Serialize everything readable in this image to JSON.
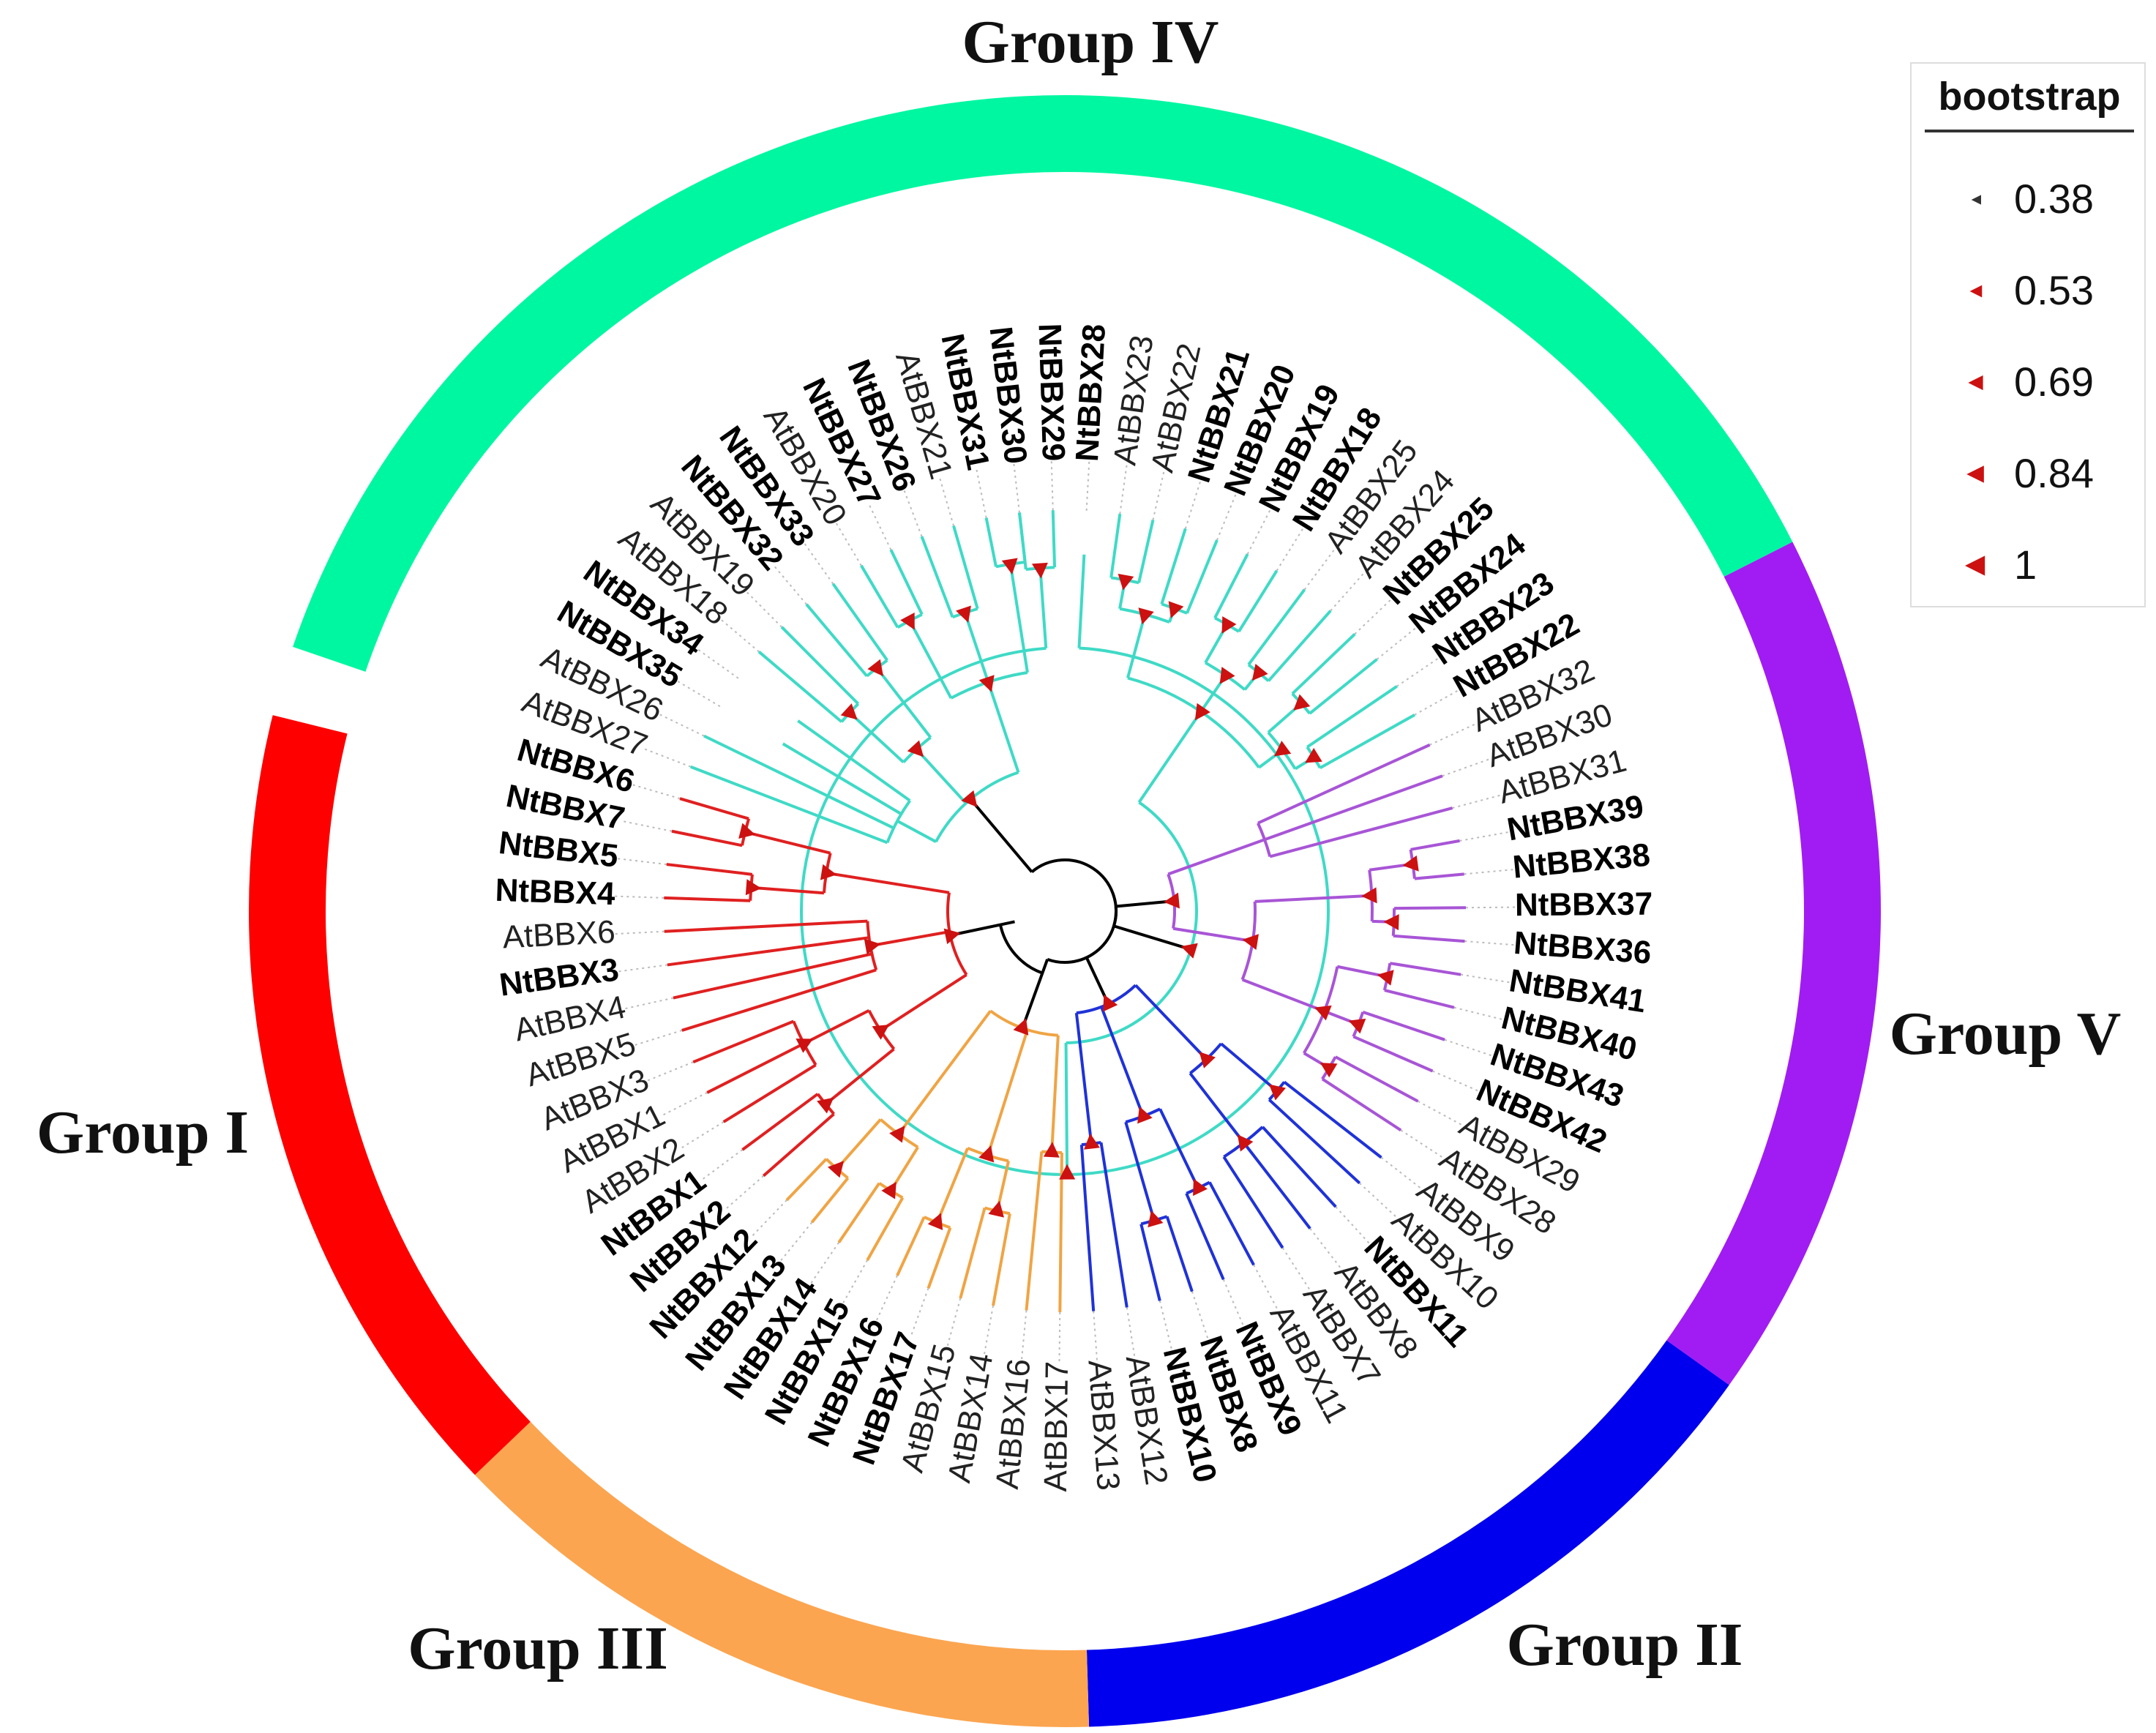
{
  "figure": {
    "groups": [
      {
        "name": "Group IV",
        "color": "#00f7a1",
        "branch_color": "#3fdac6"
      },
      {
        "name": "Group V",
        "color": "#a11cf2",
        "branch_color": "#a855d6"
      },
      {
        "name": "Group II",
        "color": "#0000ee",
        "branch_color": "#1f32d8"
      },
      {
        "name": "Group III",
        "color": "#fba550",
        "branch_color": "#f0a444"
      },
      {
        "name": "Group I",
        "color": "#ff0000",
        "branch_color": "#e02020"
      }
    ],
    "leaves_clockwise_from_top": [
      {
        "label": "NtBBX30",
        "group": "Group IV",
        "species": "Nt"
      },
      {
        "label": "NtBBX29",
        "group": "Group IV",
        "species": "Nt"
      },
      {
        "label": "NtBBX28",
        "group": "Group IV",
        "species": "Nt"
      },
      {
        "label": "AtBBX23",
        "group": "Group IV",
        "species": "At"
      },
      {
        "label": "AtBBX22",
        "group": "Group IV",
        "species": "At"
      },
      {
        "label": "NtBBX21",
        "group": "Group IV",
        "species": "Nt"
      },
      {
        "label": "NtBBX20",
        "group": "Group IV",
        "species": "Nt"
      },
      {
        "label": "NtBBX19",
        "group": "Group IV",
        "species": "Nt"
      },
      {
        "label": "NtBBX18",
        "group": "Group IV",
        "species": "Nt"
      },
      {
        "label": "AtBBX25",
        "group": "Group IV",
        "species": "At"
      },
      {
        "label": "AtBBX24",
        "group": "Group IV",
        "species": "At"
      },
      {
        "label": "NtBBX25",
        "group": "Group IV",
        "species": "Nt"
      },
      {
        "label": "NtBBX24",
        "group": "Group IV",
        "species": "Nt"
      },
      {
        "label": "NtBBX23",
        "group": "Group IV",
        "species": "Nt"
      },
      {
        "label": "NtBBX22",
        "group": "Group IV",
        "species": "Nt"
      },
      {
        "label": "AtBBX32",
        "group": "Group V",
        "species": "At"
      },
      {
        "label": "AtBBX30",
        "group": "Group V",
        "species": "At"
      },
      {
        "label": "AtBBX31",
        "group": "Group V",
        "species": "At"
      },
      {
        "label": "NtBBX39",
        "group": "Group V",
        "species": "Nt"
      },
      {
        "label": "NtBBX38",
        "group": "Group V",
        "species": "Nt"
      },
      {
        "label": "NtBBX37",
        "group": "Group V",
        "species": "Nt"
      },
      {
        "label": "NtBBX36",
        "group": "Group V",
        "species": "Nt"
      },
      {
        "label": "NtBBX41",
        "group": "Group V",
        "species": "Nt"
      },
      {
        "label": "NtBBX40",
        "group": "Group V",
        "species": "Nt"
      },
      {
        "label": "NtBBX43",
        "group": "Group V",
        "species": "Nt"
      },
      {
        "label": "NtBBX42",
        "group": "Group V",
        "species": "Nt"
      },
      {
        "label": "AtBBX29",
        "group": "Group V",
        "species": "At"
      },
      {
        "label": "AtBBX28",
        "group": "Group V",
        "species": "At"
      },
      {
        "label": "AtBBX9",
        "group": "Group II",
        "species": "At"
      },
      {
        "label": "AtBBX10",
        "group": "Group II",
        "species": "At"
      },
      {
        "label": "NtBBX11",
        "group": "Group II",
        "species": "Nt"
      },
      {
        "label": "AtBBX8",
        "group": "Group II",
        "species": "At"
      },
      {
        "label": "AtBBX7",
        "group": "Group II",
        "species": "At"
      },
      {
        "label": "AtBBX11",
        "group": "Group II",
        "species": "At"
      },
      {
        "label": "NtBBX9",
        "group": "Group II",
        "species": "Nt"
      },
      {
        "label": "NtBBX8",
        "group": "Group II",
        "species": "Nt"
      },
      {
        "label": "NtBBX10",
        "group": "Group II",
        "species": "Nt"
      },
      {
        "label": "AtBBX12",
        "group": "Group II",
        "species": "At"
      },
      {
        "label": "AtBBX13",
        "group": "Group II",
        "species": "At"
      },
      {
        "label": "AtBBX17",
        "group": "Group III",
        "species": "At"
      },
      {
        "label": "AtBBX16",
        "group": "Group III",
        "species": "At"
      },
      {
        "label": "AtBBX14",
        "group": "Group III",
        "species": "At"
      },
      {
        "label": "AtBBX15",
        "group": "Group III",
        "species": "At"
      },
      {
        "label": "NtBBX17",
        "group": "Group III",
        "species": "Nt"
      },
      {
        "label": "NtBBX16",
        "group": "Group III",
        "species": "Nt"
      },
      {
        "label": "NtBBX15",
        "group": "Group III",
        "species": "Nt"
      },
      {
        "label": "NtBBX14",
        "group": "Group III",
        "species": "Nt"
      },
      {
        "label": "NtBBX13",
        "group": "Group III",
        "species": "Nt"
      },
      {
        "label": "NtBBX12",
        "group": "Group III",
        "species": "Nt"
      },
      {
        "label": "NtBBX2",
        "group": "Group I",
        "species": "Nt"
      },
      {
        "label": "NtBBX1",
        "group": "Group I",
        "species": "Nt"
      },
      {
        "label": "AtBBX2",
        "group": "Group I",
        "species": "At"
      },
      {
        "label": "AtBBX1",
        "group": "Group I",
        "species": "At"
      },
      {
        "label": "AtBBX3",
        "group": "Group I",
        "species": "At"
      },
      {
        "label": "AtBBX5",
        "group": "Group I",
        "species": "At"
      },
      {
        "label": "AtBBX4",
        "group": "Group I",
        "species": "At"
      },
      {
        "label": "NtBBX3",
        "group": "Group I",
        "species": "Nt"
      },
      {
        "label": "AtBBX6",
        "group": "Group I",
        "species": "At"
      },
      {
        "label": "NtBBX4",
        "group": "Group I",
        "species": "Nt"
      },
      {
        "label": "NtBBX5",
        "group": "Group I",
        "species": "Nt"
      },
      {
        "label": "NtBBX7",
        "group": "Group I",
        "species": "Nt"
      },
      {
        "label": "NtBBX6",
        "group": "Group I",
        "species": "Nt"
      },
      {
        "label": "AtBBX27",
        "group": "Group IV",
        "species": "At"
      },
      {
        "label": "AtBBX26",
        "group": "Group IV",
        "species": "At"
      },
      {
        "label": "NtBBX35",
        "group": "Group IV",
        "species": "Nt"
      },
      {
        "label": "NtBBX34",
        "group": "Group IV",
        "species": "Nt"
      },
      {
        "label": "AtBBX18",
        "group": "Group IV",
        "species": "At"
      },
      {
        "label": "AtBBX19",
        "group": "Group IV",
        "species": "At"
      },
      {
        "label": "NtBBX32",
        "group": "Group IV",
        "species": "Nt"
      },
      {
        "label": "NtBBX33",
        "group": "Group IV",
        "species": "Nt"
      },
      {
        "label": "AtBBX20",
        "group": "Group IV",
        "species": "At"
      },
      {
        "label": "NtBBX27",
        "group": "Group IV",
        "species": "Nt"
      },
      {
        "label": "NtBBX26",
        "group": "Group IV",
        "species": "Nt"
      },
      {
        "label": "AtBBX21",
        "group": "Group IV",
        "species": "At"
      },
      {
        "label": "NtBBX31",
        "group": "Group IV",
        "species": "Nt"
      }
    ],
    "legend": {
      "title": "bootstrap",
      "marker_color": "#cc1111",
      "items": [
        {
          "label": "0.38",
          "value": 0.38
        },
        {
          "label": "0.53",
          "value": 0.53
        },
        {
          "label": "0.69",
          "value": 0.69
        },
        {
          "label": "0.84",
          "value": 0.84
        },
        {
          "label": "1",
          "value": 1
        }
      ]
    },
    "center_color": "#000000",
    "guide_color": "#bbbbbb"
  }
}
